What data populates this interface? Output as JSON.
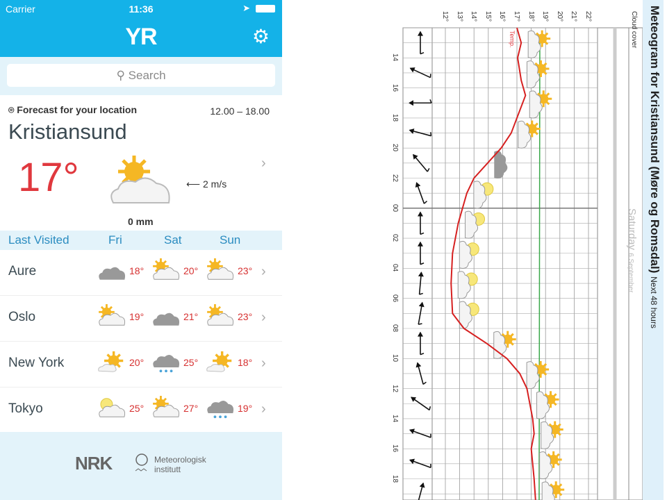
{
  "status": {
    "carrier": "Carrier",
    "time": "11:36"
  },
  "header": {
    "logo": "YR",
    "settings_icon": "gear-icon"
  },
  "search": {
    "placeholder": "Search"
  },
  "forecast": {
    "heading": "Forecast for your location",
    "period": "12.00 – 18.00",
    "city": "Kristiansund",
    "temperature": "17°",
    "wind": "2 m/s",
    "precipitation": "0 mm",
    "symbol": "partly-cloudy"
  },
  "last_visited": {
    "heading": "Last Visited",
    "days": [
      "Fri",
      "Sat",
      "Sun"
    ],
    "rows": [
      {
        "city": "Aure",
        "days": [
          {
            "icon": "cloudy",
            "temp": "18°"
          },
          {
            "icon": "partly-cloudy",
            "temp": "20°"
          },
          {
            "icon": "partly-cloudy",
            "temp": "23°"
          }
        ]
      },
      {
        "city": "Oslo",
        "days": [
          {
            "icon": "partly-cloudy",
            "temp": "19°"
          },
          {
            "icon": "cloudy",
            "temp": "21°"
          },
          {
            "icon": "partly-cloudy",
            "temp": "23°"
          }
        ]
      },
      {
        "city": "New York",
        "days": [
          {
            "icon": "fair",
            "temp": "20°"
          },
          {
            "icon": "rain",
            "temp": "25°"
          },
          {
            "icon": "fair",
            "temp": "18°"
          }
        ]
      },
      {
        "city": "Tokyo",
        "days": [
          {
            "icon": "partly-cloudy-pale",
            "temp": "25°"
          },
          {
            "icon": "partly-cloudy",
            "temp": "27°"
          },
          {
            "icon": "rain",
            "temp": "19°"
          }
        ]
      }
    ]
  },
  "footer": {
    "nrk": "NRK",
    "met_line1": "Meteorologisk",
    "met_line2": "institutt"
  },
  "chart_data": {
    "type": "line",
    "title": "Meteogram for Kristiansund (Møre og Romsdal)",
    "subtitle": "Next 48 hours",
    "day_label": "Saturday",
    "day_date": "6 September",
    "cloud_cover_label": "Cloud cover",
    "series_label": "Temp.",
    "temp_ticks": [
      "12°",
      "13°",
      "14°",
      "15°",
      "16°",
      "17°",
      "18°",
      "19°",
      "20°",
      "21°",
      "22°"
    ],
    "ylim": [
      12,
      22
    ],
    "time_ticks": [
      "14",
      "16",
      "18",
      "20",
      "22",
      "00",
      "02",
      "04",
      "06",
      "08",
      "10",
      "12",
      "14",
      "16",
      "18"
    ],
    "temperature": {
      "hours": [
        12,
        13,
        14,
        15.5,
        16.5,
        17.5,
        19,
        20,
        22,
        23,
        25,
        27,
        29,
        31,
        32,
        33,
        34,
        35,
        36,
        38,
        39,
        40,
        42,
        43.4
      ],
      "values": [
        17.0,
        17.3,
        17.05,
        17.3,
        17.6,
        17.2,
        16.6,
        15.9,
        14.0,
        13.5,
        12.9,
        12.5,
        12.4,
        12.5,
        13.3,
        14.9,
        16.3,
        17.2,
        17.7,
        18.1,
        18.2,
        18.0,
        18.2,
        18.3
      ]
    },
    "reference_line": 18.6,
    "wind_dir_deg": [
      0,
      -65,
      -90,
      -75,
      -40,
      -20,
      0,
      0,
      5,
      10,
      0,
      -15,
      -55,
      -70,
      -70,
      15
    ],
    "symbols": [
      {
        "h": 13,
        "type": "partly-cloudy"
      },
      {
        "h": 15,
        "type": "partly-cloudy"
      },
      {
        "h": 17,
        "type": "partly-cloudy"
      },
      {
        "h": 19,
        "type": "partly-cloudy"
      },
      {
        "h": 21,
        "type": "cloudy"
      },
      {
        "h": 23,
        "type": "partly-cloudy-pale"
      },
      {
        "h": 25,
        "type": "partly-cloudy-pale"
      },
      {
        "h": 27,
        "type": "partly-cloudy-pale"
      },
      {
        "h": 29,
        "type": "partly-cloudy-pale"
      },
      {
        "h": 31,
        "type": "partly-cloudy-pale"
      },
      {
        "h": 33,
        "type": "partly-cloudy"
      },
      {
        "h": 35,
        "type": "partly-cloudy"
      },
      {
        "h": 37,
        "type": "partly-cloudy"
      },
      {
        "h": 39,
        "type": "partly-cloudy"
      },
      {
        "h": 41,
        "type": "partly-cloudy"
      },
      {
        "h": 43,
        "type": "partly-cloudy"
      }
    ]
  }
}
